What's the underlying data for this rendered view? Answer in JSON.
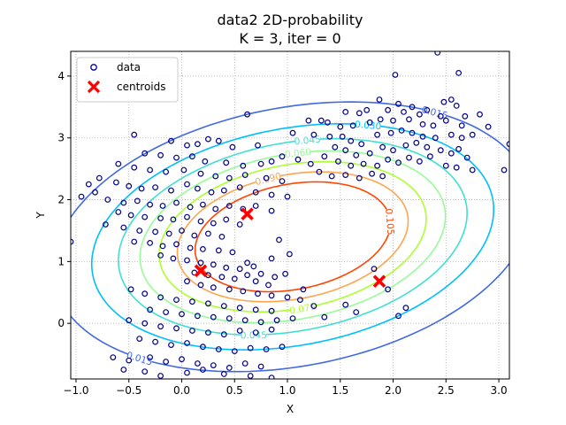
{
  "chart_data": {
    "type": "scatter",
    "title": "data2 2D-probability",
    "subtitle": "K = 3, iter = 0",
    "xlabel": "X",
    "ylabel": "Y",
    "xlim": [
      -1.05,
      3.1
    ],
    "ylim": [
      -0.9,
      4.4
    ],
    "xticks": [
      -1.0,
      -0.5,
      0.0,
      0.5,
      1.0,
      1.5,
      2.0,
      2.5,
      3.0
    ],
    "xtick_labels": [
      "−1.0",
      "−0.5",
      "0.0",
      "0.5",
      "1.0",
      "1.5",
      "2.0",
      "2.5",
      "3.0"
    ],
    "yticks": [
      0,
      1,
      2,
      3,
      4
    ],
    "ytick_labels": [
      "0",
      "1",
      "2",
      "3",
      "4"
    ],
    "grid": true,
    "grid_style": "dotted",
    "legend_position": "top-left",
    "legend": [
      {
        "label": "data",
        "marker": "open-circle",
        "color": "#00008b"
      },
      {
        "label": "centroids",
        "marker": "x",
        "color": "#ff0000"
      }
    ],
    "centroids": [
      {
        "x": 0.62,
        "y": 1.77
      },
      {
        "x": 0.18,
        "y": 0.85
      },
      {
        "x": 1.87,
        "y": 0.68
      }
    ],
    "gaussian": {
      "mx": 1.05,
      "my": 1.4,
      "sx": 1.05,
      "sy": 1.01,
      "rho": 0.24
    },
    "contours": [
      {
        "level": 0.015,
        "label": "0.015",
        "color": "#4169e1"
      },
      {
        "level": 0.03,
        "label": "0.030",
        "color": "#00bfff"
      },
      {
        "level": 0.045,
        "label": "0.045",
        "color": "#40e0d0"
      },
      {
        "level": 0.06,
        "label": "0.060",
        "color": "#98fb98"
      },
      {
        "level": 0.075,
        "label": "0.075",
        "color": "#adff2f"
      },
      {
        "level": 0.09,
        "label": "0.090",
        "color": "#ffa54f"
      },
      {
        "level": 0.105,
        "label": "0.105",
        "color": "#ff4500"
      }
    ],
    "points": [
      [
        2.02,
        4.02
      ],
      [
        2.42,
        4.38
      ],
      [
        2.62,
        4.05
      ],
      [
        1.87,
        3.62
      ],
      [
        2.05,
        3.55
      ],
      [
        2.18,
        3.5
      ],
      [
        2.32,
        3.45
      ],
      [
        2.48,
        3.58
      ],
      [
        2.55,
        3.62
      ],
      [
        2.6,
        3.52
      ],
      [
        1.68,
        3.4
      ],
      [
        1.75,
        3.45
      ],
      [
        2.1,
        3.42
      ],
      [
        2.25,
        3.38
      ],
      [
        2.45,
        3.35
      ],
      [
        2.68,
        3.35
      ],
      [
        2.82,
        3.38
      ],
      [
        1.55,
        3.42
      ],
      [
        1.95,
        3.45
      ],
      [
        2.15,
        3.3
      ],
      [
        1.32,
        3.28
      ],
      [
        1.38,
        3.25
      ],
      [
        1.5,
        3.18
      ],
      [
        1.62,
        3.2
      ],
      [
        1.78,
        3.25
      ],
      [
        1.88,
        3.3
      ],
      [
        2.0,
        3.28
      ],
      [
        2.28,
        3.22
      ],
      [
        2.38,
        3.2
      ],
      [
        2.5,
        3.28
      ],
      [
        2.65,
        3.2
      ],
      [
        2.9,
        3.18
      ],
      [
        1.2,
        3.28
      ],
      [
        1.25,
        3.05
      ],
      [
        1.4,
        3.02
      ],
      [
        1.52,
        3.02
      ],
      [
        1.6,
        2.95
      ],
      [
        1.7,
        2.9
      ],
      [
        1.85,
        3.05
      ],
      [
        1.98,
        3.08
      ],
      [
        2.08,
        3.12
      ],
      [
        2.18,
        3.08
      ],
      [
        2.28,
        3.02
      ],
      [
        2.4,
        3.0
      ],
      [
        2.55,
        3.05
      ],
      [
        2.65,
        3.0
      ],
      [
        2.75,
        3.05
      ],
      [
        1.45,
        2.85
      ],
      [
        1.55,
        2.8
      ],
      [
        1.65,
        2.72
      ],
      [
        1.78,
        2.75
      ],
      [
        1.9,
        2.85
      ],
      [
        2.0,
        2.8
      ],
      [
        2.12,
        2.88
      ],
      [
        2.22,
        2.92
      ],
      [
        2.32,
        2.85
      ],
      [
        2.45,
        2.8
      ],
      [
        2.55,
        2.75
      ],
      [
        2.62,
        2.82
      ],
      [
        2.7,
        2.68
      ],
      [
        1.35,
        2.7
      ],
      [
        1.48,
        2.62
      ],
      [
        1.6,
        2.55
      ],
      [
        1.72,
        2.58
      ],
      [
        1.85,
        2.55
      ],
      [
        1.95,
        2.65
      ],
      [
        2.05,
        2.6
      ],
      [
        2.15,
        2.68
      ],
      [
        2.25,
        2.62
      ],
      [
        2.35,
        2.7
      ],
      [
        2.5,
        2.55
      ],
      [
        2.6,
        2.52
      ],
      [
        2.75,
        2.48
      ],
      [
        3.05,
        2.48
      ],
      [
        3.1,
        2.9
      ],
      [
        1.05,
        3.08
      ],
      [
        0.95,
        2.7
      ],
      [
        1.1,
        2.65
      ],
      [
        1.22,
        2.58
      ],
      [
        1.3,
        2.45
      ],
      [
        1.42,
        2.38
      ],
      [
        1.55,
        2.4
      ],
      [
        1.68,
        2.35
      ],
      [
        1.8,
        2.42
      ],
      [
        1.9,
        2.38
      ],
      [
        0.62,
        3.38
      ],
      [
        0.25,
        2.98
      ],
      [
        -0.45,
        3.05
      ],
      [
        -0.1,
        2.95
      ],
      [
        0.05,
        2.88
      ],
      [
        0.15,
        2.9
      ],
      [
        0.35,
        2.95
      ],
      [
        0.48,
        2.85
      ],
      [
        0.72,
        2.88
      ],
      [
        -0.35,
        2.75
      ],
      [
        -0.2,
        2.72
      ],
      [
        -0.05,
        2.68
      ],
      [
        0.1,
        2.7
      ],
      [
        0.22,
        2.62
      ],
      [
        0.42,
        2.6
      ],
      [
        0.58,
        2.55
      ],
      [
        0.75,
        2.58
      ],
      [
        0.85,
        2.62
      ],
      [
        -0.6,
        2.58
      ],
      [
        -0.45,
        2.52
      ],
      [
        -0.3,
        2.48
      ],
      [
        -0.15,
        2.45
      ],
      [
        0.02,
        2.48
      ],
      [
        0.18,
        2.42
      ],
      [
        0.32,
        2.38
      ],
      [
        0.45,
        2.35
      ],
      [
        0.6,
        2.4
      ],
      [
        0.8,
        2.35
      ],
      [
        0.95,
        2.3
      ],
      [
        -0.78,
        2.35
      ],
      [
        -0.62,
        2.28
      ],
      [
        -0.5,
        2.22
      ],
      [
        -0.38,
        2.18
      ],
      [
        -0.25,
        2.2
      ],
      [
        -0.1,
        2.15
      ],
      [
        0.05,
        2.25
      ],
      [
        0.15,
        2.18
      ],
      [
        0.28,
        2.12
      ],
      [
        0.4,
        2.15
      ],
      [
        0.55,
        2.2
      ],
      [
        0.7,
        2.12
      ],
      [
        0.85,
        2.08
      ],
      [
        1.0,
        2.05
      ],
      [
        -0.82,
        2.12
      ],
      [
        -0.7,
        2.0
      ],
      [
        -0.55,
        1.95
      ],
      [
        -0.42,
        1.98
      ],
      [
        -0.3,
        1.92
      ],
      [
        -0.18,
        1.9
      ],
      [
        -0.05,
        1.95
      ],
      [
        0.08,
        1.88
      ],
      [
        0.2,
        1.92
      ],
      [
        0.32,
        1.85
      ],
      [
        0.45,
        1.9
      ],
      [
        0.58,
        1.85
      ],
      [
        0.7,
        1.9
      ],
      [
        0.85,
        1.82
      ],
      [
        -0.6,
        1.8
      ],
      [
        -0.48,
        1.75
      ],
      [
        -0.35,
        1.72
      ],
      [
        -0.2,
        1.7
      ],
      [
        -0.08,
        1.68
      ],
      [
        0.05,
        1.72
      ],
      [
        0.18,
        1.65
      ],
      [
        0.3,
        1.62
      ],
      [
        0.42,
        1.68
      ],
      [
        0.55,
        1.6
      ],
      [
        -0.72,
        1.6
      ],
      [
        -0.55,
        1.55
      ],
      [
        -0.4,
        1.5
      ],
      [
        -0.25,
        1.48
      ],
      [
        -0.12,
        1.45
      ],
      [
        0.0,
        1.5
      ],
      [
        0.12,
        1.42
      ],
      [
        0.25,
        1.45
      ],
      [
        0.38,
        1.4
      ],
      [
        -0.45,
        1.32
      ],
      [
        -0.3,
        1.3
      ],
      [
        -0.18,
        1.25
      ],
      [
        -0.05,
        1.28
      ],
      [
        0.08,
        1.22
      ],
      [
        0.2,
        1.2
      ],
      [
        0.35,
        1.18
      ],
      [
        0.48,
        1.15
      ],
      [
        -0.2,
        1.1
      ],
      [
        -0.08,
        1.05
      ],
      [
        0.05,
        1.02
      ],
      [
        0.18,
        0.98
      ],
      [
        0.3,
        0.95
      ],
      [
        0.42,
        0.9
      ],
      [
        0.55,
        0.88
      ],
      [
        0.68,
        0.92
      ],
      [
        -1.05,
        1.32
      ],
      [
        -0.88,
        2.25
      ],
      [
        -0.95,
        2.05
      ],
      [
        0.12,
        0.82
      ],
      [
        0.25,
        0.78
      ],
      [
        0.38,
        0.75
      ],
      [
        0.5,
        0.72
      ],
      [
        0.62,
        0.78
      ],
      [
        0.75,
        0.8
      ],
      [
        0.88,
        0.75
      ],
      [
        0.98,
        0.8
      ],
      [
        0.7,
        0.68
      ],
      [
        0.82,
        0.62
      ],
      [
        0.05,
        0.68
      ],
      [
        0.18,
        0.62
      ],
      [
        0.3,
        0.58
      ],
      [
        0.45,
        0.55
      ],
      [
        0.58,
        0.52
      ],
      [
        0.72,
        0.48
      ],
      [
        0.85,
        0.45
      ],
      [
        1.0,
        0.42
      ],
      [
        1.12,
        0.38
      ],
      [
        0.62,
        0.98
      ],
      [
        -0.48,
        0.55
      ],
      [
        -0.35,
        0.48
      ],
      [
        -0.2,
        0.42
      ],
      [
        -0.05,
        0.38
      ],
      [
        0.1,
        0.35
      ],
      [
        0.25,
        0.32
      ],
      [
        0.4,
        0.28
      ],
      [
        0.55,
        0.25
      ],
      [
        0.7,
        0.22
      ],
      [
        0.85,
        0.2
      ],
      [
        -0.3,
        0.22
      ],
      [
        -0.15,
        0.18
      ],
      [
        0.0,
        0.15
      ],
      [
        0.15,
        0.12
      ],
      [
        0.3,
        0.1
      ],
      [
        0.45,
        0.08
      ],
      [
        0.6,
        0.05
      ],
      [
        0.75,
        0.02
      ],
      [
        0.9,
        0.05
      ],
      [
        1.05,
        0.08
      ],
      [
        -0.5,
        0.05
      ],
      [
        -0.35,
        0.0
      ],
      [
        -0.2,
        -0.05
      ],
      [
        -0.05,
        -0.08
      ],
      [
        0.1,
        -0.12
      ],
      [
        0.25,
        -0.15
      ],
      [
        0.4,
        -0.18
      ],
      [
        0.55,
        -0.12
      ],
      [
        0.7,
        -0.15
      ],
      [
        0.85,
        -0.1
      ],
      [
        -0.4,
        -0.25
      ],
      [
        -0.25,
        -0.3
      ],
      [
        -0.1,
        -0.35
      ],
      [
        0.05,
        -0.32
      ],
      [
        0.2,
        -0.38
      ],
      [
        0.35,
        -0.42
      ],
      [
        0.5,
        -0.45
      ],
      [
        0.65,
        -0.4
      ],
      [
        0.8,
        -0.42
      ],
      [
        0.95,
        -0.38
      ],
      [
        -0.65,
        -0.55
      ],
      [
        -0.5,
        -0.6
      ],
      [
        -0.3,
        -0.55
      ],
      [
        -0.15,
        -0.62
      ],
      [
        0.0,
        -0.58
      ],
      [
        0.15,
        -0.65
      ],
      [
        0.3,
        -0.68
      ],
      [
        0.45,
        -0.72
      ],
      [
        0.6,
        -0.65
      ],
      [
        0.75,
        -0.7
      ],
      [
        -0.55,
        -0.75
      ],
      [
        -0.35,
        -0.78
      ],
      [
        -0.2,
        -0.85
      ],
      [
        0.05,
        -0.8
      ],
      [
        0.2,
        -0.75
      ],
      [
        0.4,
        -0.82
      ],
      [
        0.65,
        -0.85
      ],
      [
        0.85,
        -0.88
      ],
      [
        1.15,
        0.55
      ],
      [
        1.25,
        0.28
      ],
      [
        1.55,
        0.3
      ],
      [
        1.35,
        0.1
      ],
      [
        1.82,
        0.88
      ],
      [
        1.95,
        0.55
      ],
      [
        2.12,
        0.25
      ],
      [
        2.05,
        0.12
      ],
      [
        1.65,
        0.18
      ],
      [
        0.92,
        1.35
      ],
      [
        1.02,
        1.12
      ],
      [
        0.85,
        1.05
      ]
    ]
  }
}
